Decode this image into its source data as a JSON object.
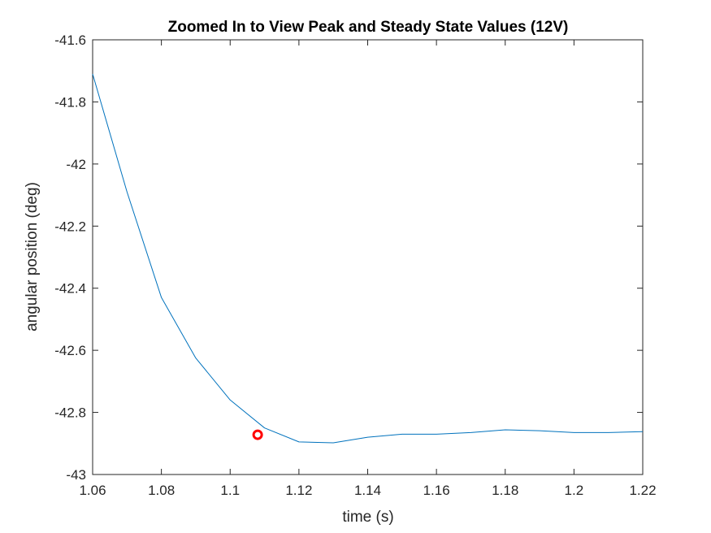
{
  "chart_data": {
    "type": "line",
    "title": "Zoomed In to View Peak and Steady State Values (12V)",
    "xlabel": "time (s)",
    "ylabel": "angular position (deg)",
    "xlim": [
      1.06,
      1.22
    ],
    "ylim": [
      -43,
      -41.6
    ],
    "xticks": [
      1.06,
      1.08,
      1.1,
      1.12,
      1.14,
      1.16,
      1.18,
      1.2,
      1.22
    ],
    "xtick_labels": [
      "1.06",
      "1.08",
      "1.1",
      "1.12",
      "1.14",
      "1.16",
      "1.18",
      "1.2",
      "1.22"
    ],
    "yticks": [
      -41.6,
      -41.8,
      -42,
      -42.2,
      -42.4,
      -42.6,
      -42.8,
      -43
    ],
    "ytick_labels": [
      "-41.6",
      "-41.8",
      "-42",
      "-42.2",
      "-42.4",
      "-42.6",
      "-42.8",
      "-43"
    ],
    "grid": false,
    "box": true,
    "series": [
      {
        "color": "#0072BD",
        "x": [
          1.06,
          1.07,
          1.08,
          1.09,
          1.1,
          1.11,
          1.12,
          1.13,
          1.14,
          1.15,
          1.16,
          1.17,
          1.18,
          1.19,
          1.2,
          1.21,
          1.22
        ],
        "y": [
          -41.71,
          -42.09,
          -42.43,
          -42.625,
          -42.76,
          -42.85,
          -42.895,
          -42.898,
          -42.88,
          -42.87,
          -42.87,
          -42.865,
          -42.856,
          -42.859,
          -42.865,
          -42.865,
          -42.862
        ]
      }
    ],
    "markers": [
      {
        "x": 1.108,
        "y": -42.872,
        "shape": "circle",
        "color": "#FF0000"
      }
    ]
  }
}
